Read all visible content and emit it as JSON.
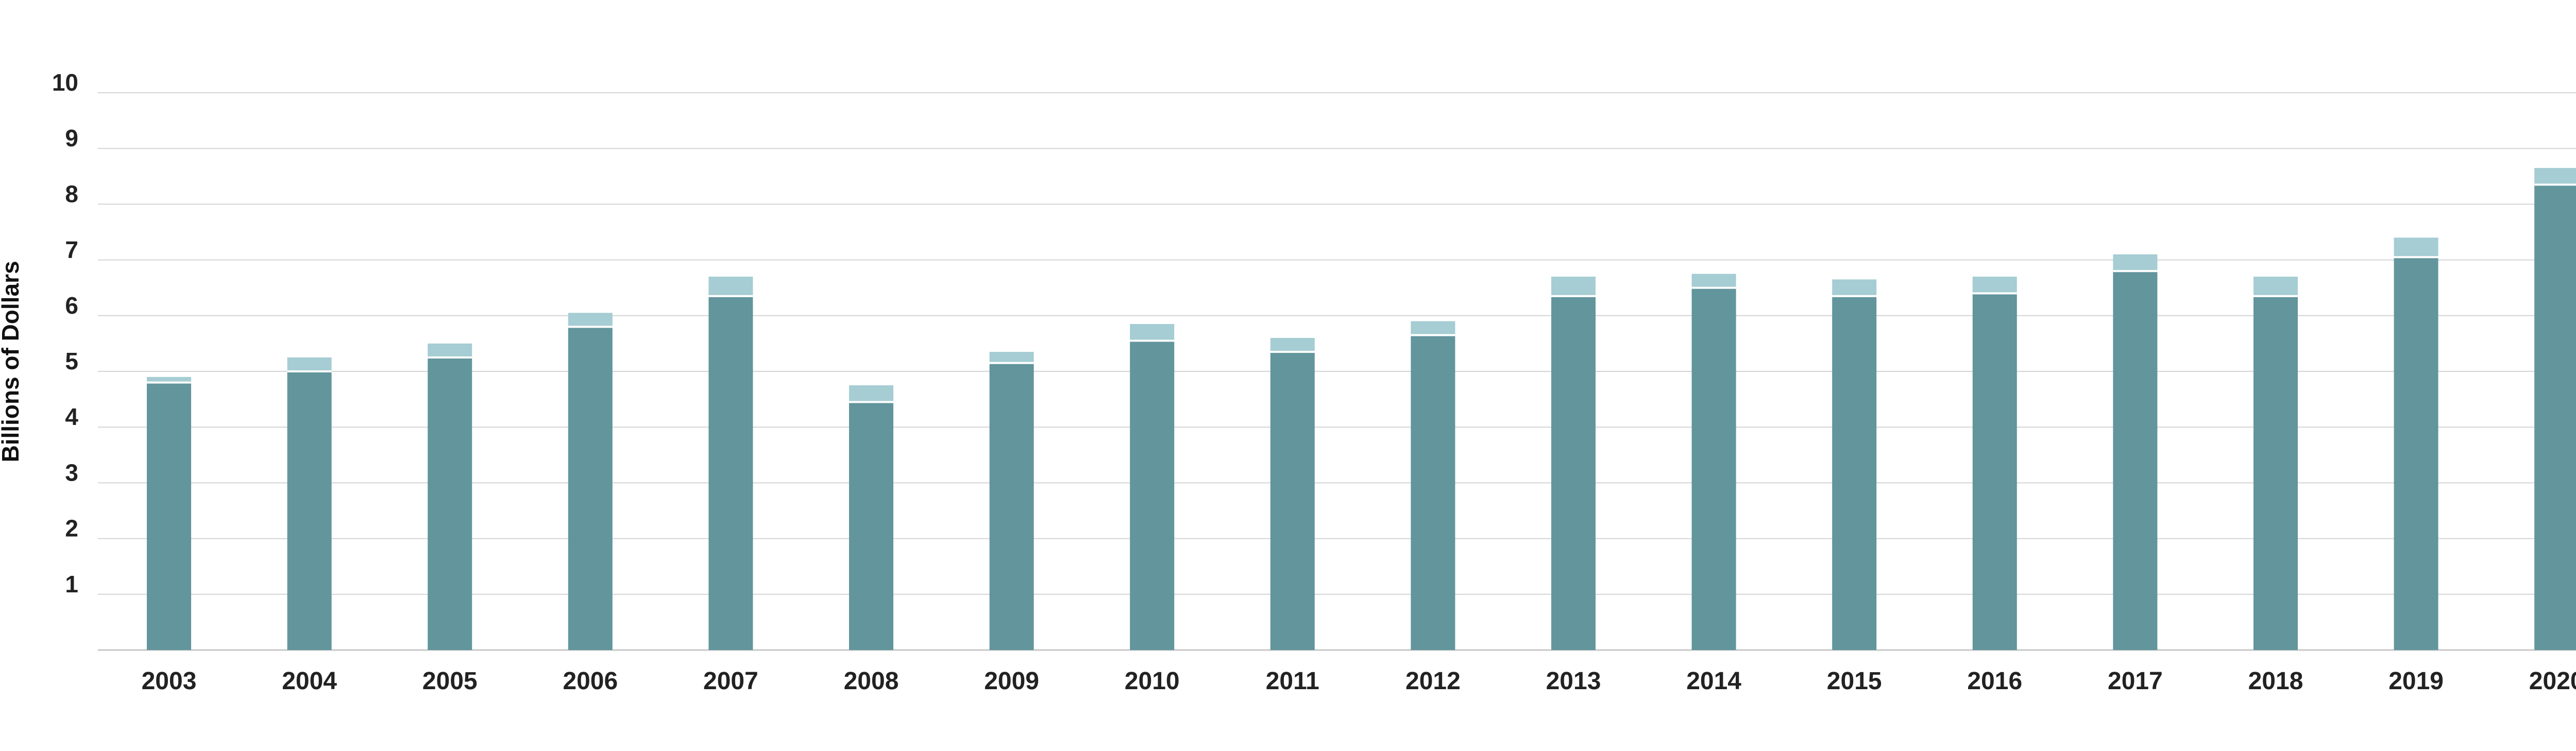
{
  "chart_data": {
    "type": "bar",
    "stacked": true,
    "title": "",
    "xlabel": "",
    "ylabel": "Billions of Dollars",
    "ylim": [
      0,
      10
    ],
    "yticks": [
      1,
      2,
      3,
      4,
      5,
      6,
      7,
      8,
      9,
      10
    ],
    "grid": true,
    "legend": "none",
    "categories": [
      "2003",
      "2004",
      "2005",
      "2006",
      "2007",
      "2008",
      "2009",
      "2010",
      "2011",
      "2012",
      "2013",
      "2014",
      "2015",
      "2016",
      "2017",
      "2018",
      "2019",
      "2020"
    ],
    "series": [
      {
        "color": "#62959c",
        "values": [
          4.8,
          5.0,
          5.25,
          5.8,
          6.35,
          4.45,
          5.15,
          5.55,
          5.35,
          5.65,
          6.35,
          6.5,
          6.35,
          6.4,
          6.8,
          6.35,
          7.05,
          8.35
        ]
      },
      {
        "color": "#a5cdd3",
        "values": [
          0.1,
          0.25,
          0.25,
          0.25,
          0.35,
          0.3,
          0.2,
          0.3,
          0.25,
          0.25,
          0.35,
          0.25,
          0.3,
          0.3,
          0.3,
          0.35,
          0.35,
          0.3
        ]
      }
    ]
  }
}
